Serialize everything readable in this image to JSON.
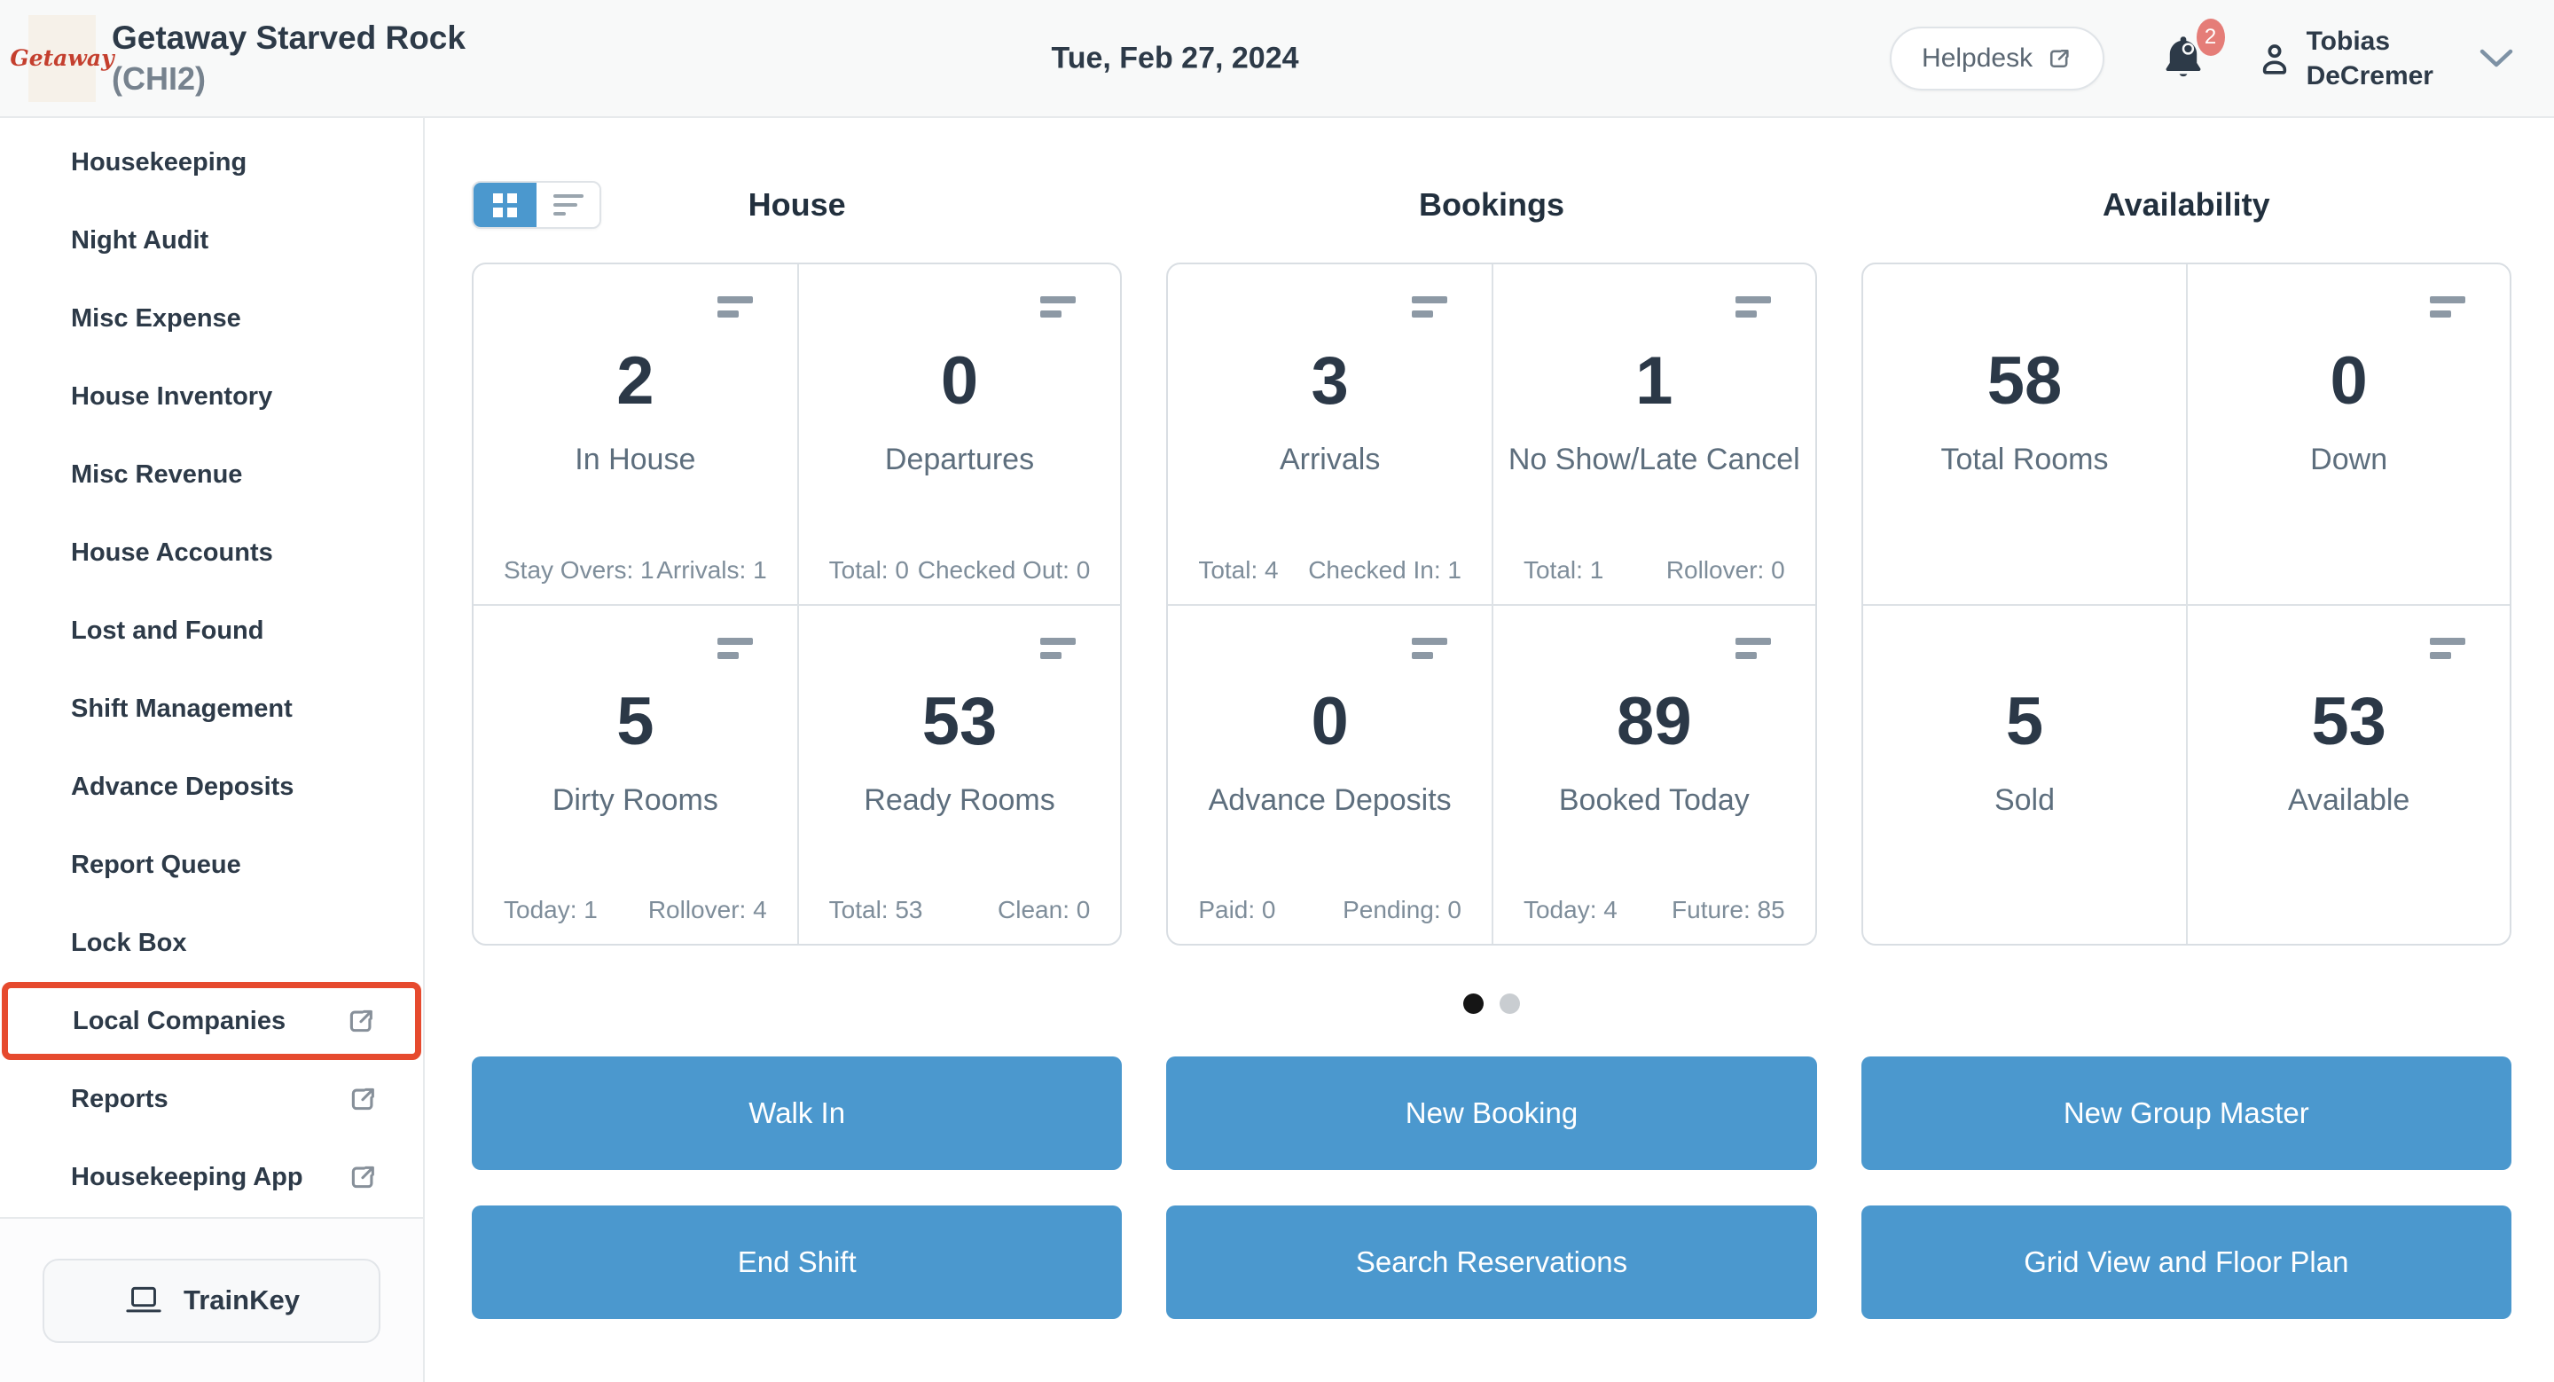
{
  "header": {
    "logo_text": "Getaway",
    "property_name": "Getaway Starved Rock",
    "property_code": "(CHI2)",
    "date": "Tue, Feb 27, 2024",
    "helpdesk_label": "Helpdesk",
    "notification_count": "2",
    "user_first_name": "Tobias",
    "user_last_name": "DeCremer"
  },
  "sidebar": {
    "items": [
      {
        "label": "Housekeeping",
        "external": false,
        "highlighted": false
      },
      {
        "label": "Night Audit",
        "external": false,
        "highlighted": false
      },
      {
        "label": "Misc Expense",
        "external": false,
        "highlighted": false
      },
      {
        "label": "House Inventory",
        "external": false,
        "highlighted": false
      },
      {
        "label": "Misc Revenue",
        "external": false,
        "highlighted": false
      },
      {
        "label": "House Accounts",
        "external": false,
        "highlighted": false
      },
      {
        "label": "Lost and Found",
        "external": false,
        "highlighted": false
      },
      {
        "label": "Shift Management",
        "external": false,
        "highlighted": false
      },
      {
        "label": "Advance Deposits",
        "external": false,
        "highlighted": false
      },
      {
        "label": "Report Queue",
        "external": false,
        "highlighted": false
      },
      {
        "label": "Lock Box",
        "external": false,
        "highlighted": false
      },
      {
        "label": "Local Companies",
        "external": true,
        "highlighted": true
      },
      {
        "label": "Reports",
        "external": true,
        "highlighted": false
      },
      {
        "label": "Housekeeping App",
        "external": true,
        "highlighted": false
      }
    ],
    "trainkey_label": "TrainKey"
  },
  "view_toggle": {
    "options": [
      {
        "icon": "grid-view-icon",
        "active": true
      },
      {
        "icon": "list-view-icon",
        "active": false
      }
    ]
  },
  "dashboard": {
    "sections": [
      {
        "title": "House",
        "cards": [
          {
            "value": "2",
            "label": "In House",
            "menu_icon": true,
            "stats": [
              "Stay Overs: 1",
              "Arrivals: 1"
            ]
          },
          {
            "value": "0",
            "label": "Departures",
            "menu_icon": true,
            "stats": [
              "Total: 0",
              "Checked Out: 0"
            ]
          },
          {
            "value": "5",
            "label": "Dirty Rooms",
            "menu_icon": true,
            "stats": [
              "Today: 1",
              "Rollover: 4"
            ]
          },
          {
            "value": "53",
            "label": "Ready Rooms",
            "menu_icon": true,
            "stats": [
              "Total: 53",
              "Clean: 0"
            ]
          }
        ]
      },
      {
        "title": "Bookings",
        "cards": [
          {
            "value": "3",
            "label": "Arrivals",
            "menu_icon": true,
            "stats": [
              "Total: 4",
              "Checked In: 1"
            ]
          },
          {
            "value": "1",
            "label": "No Show/Late Cancel",
            "menu_icon": true,
            "stats": [
              "Total: 1",
              "Rollover: 0"
            ]
          },
          {
            "value": "0",
            "label": "Advance Deposits",
            "menu_icon": true,
            "stats": [
              "Paid: 0",
              "Pending: 0"
            ]
          },
          {
            "value": "89",
            "label": "Booked Today",
            "menu_icon": true,
            "stats": [
              "Today: 4",
              "Future: 85"
            ]
          }
        ]
      },
      {
        "title": "Availability",
        "cards": [
          {
            "value": "58",
            "label": "Total Rooms",
            "menu_icon": false,
            "stats": []
          },
          {
            "value": "0",
            "label": "Down",
            "menu_icon": true,
            "stats": []
          },
          {
            "value": "5",
            "label": "Sold",
            "menu_icon": false,
            "stats": []
          },
          {
            "value": "53",
            "label": "Available",
            "menu_icon": true,
            "stats": []
          }
        ]
      }
    ],
    "pagination": {
      "total_pages": 2,
      "active_page": 1
    }
  },
  "actions": {
    "buttons": [
      "Walk In",
      "New Booking",
      "New Group Master",
      "End Shift",
      "Search Reservations",
      "Grid View and Floor Plan"
    ]
  },
  "icons": {
    "external_link": "external-link-icon",
    "bell": "bell-icon",
    "user": "user-icon",
    "chevron_down": "chevron-down-icon",
    "laptop": "laptop-icon",
    "grid_view": "grid-view-icon",
    "list_view": "list-view-icon",
    "card_menu": "card-menu-icon"
  },
  "colors": {
    "accent_blue": "#4b98ce",
    "highlight_red": "#e64a2e",
    "badge_red": "#e57d78",
    "text_dark": "#2d3a48",
    "label_gray": "#5d6e7d",
    "stat_gray": "#7e8d9a",
    "border_gray": "#d9dee3"
  }
}
